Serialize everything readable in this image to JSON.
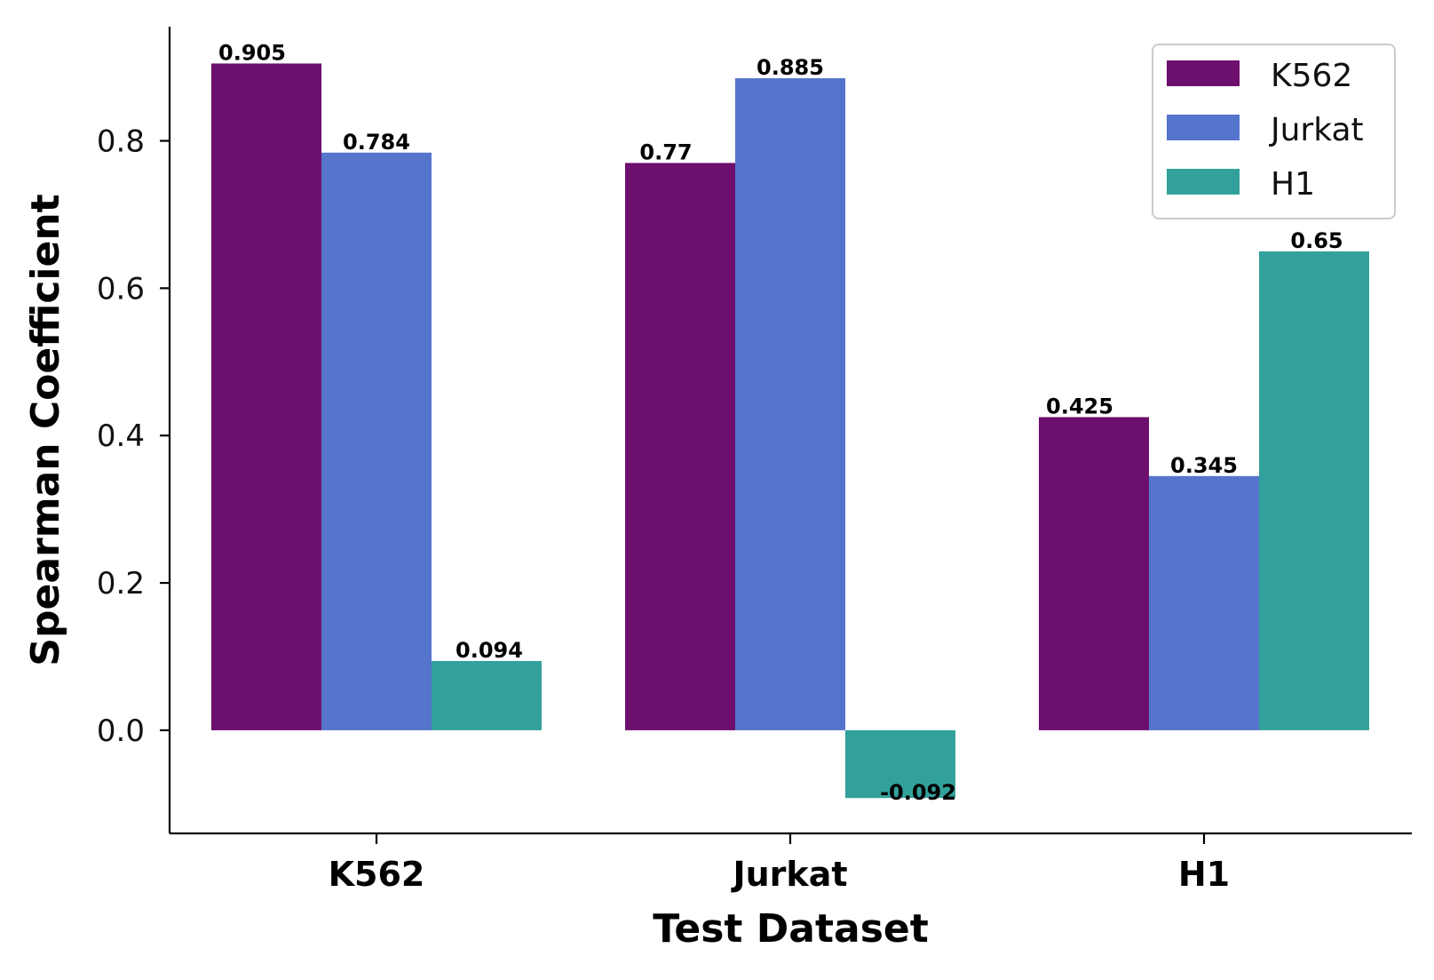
{
  "chart_data": {
    "type": "bar",
    "categories": [
      "K562",
      "Jurkat",
      "H1"
    ],
    "series": [
      {
        "name": "K562",
        "color": "#6d0f6d",
        "values": [
          0.905,
          0.77,
          0.425
        ],
        "labels": [
          "0.905",
          "0.77",
          "0.425"
        ]
      },
      {
        "name": "Jurkat",
        "color": "#5574cc",
        "values": [
          0.784,
          0.885,
          0.345
        ],
        "labels": [
          "0.784",
          "0.885",
          "0.345"
        ]
      },
      {
        "name": "H1",
        "color": "#33a19b",
        "values": [
          0.094,
          -0.092,
          0.65
        ],
        "labels": [
          "0.094",
          "-0.092",
          "0.65"
        ]
      }
    ],
    "title": "",
    "xlabel": "Test Dataset",
    "ylabel": "Spearman Coefficient",
    "ylim": [
      -0.14,
      0.955
    ],
    "yticks": [
      0.0,
      0.2,
      0.4,
      0.6,
      0.8
    ],
    "ytick_labels": [
      "0.0",
      "0.2",
      "0.4",
      "0.6",
      "0.8"
    ],
    "grid": false,
    "legend_position": "top-right"
  }
}
